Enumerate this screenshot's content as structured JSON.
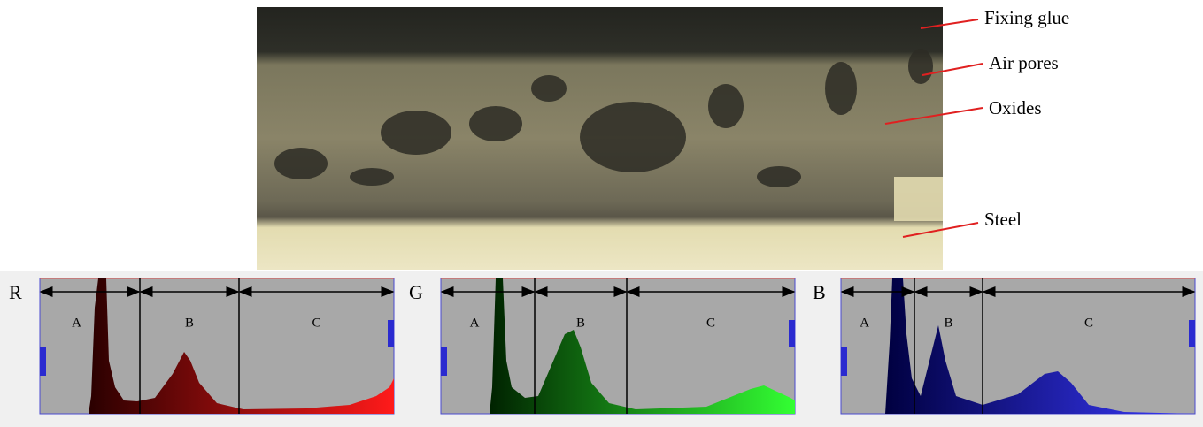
{
  "micrograph": {
    "labels": [
      "Fixing glue",
      "Air pores",
      "Oxides",
      "Steel"
    ]
  },
  "histograms": [
    {
      "channel": "R",
      "regions": [
        "A",
        "B",
        "C"
      ]
    },
    {
      "channel": "G",
      "regions": [
        "A",
        "B",
        "C"
      ]
    },
    {
      "channel": "B",
      "regions": [
        "A",
        "B",
        "C"
      ]
    }
  ]
}
